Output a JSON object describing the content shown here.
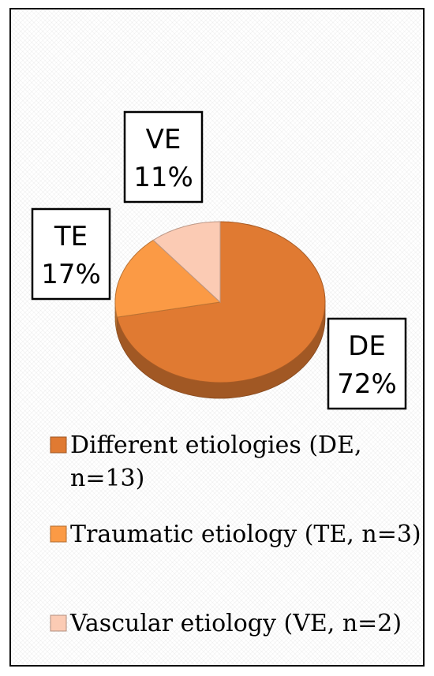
{
  "chart_data": {
    "type": "pie",
    "style": "3d",
    "slices": [
      {
        "label": "DE",
        "percent_label": "72%",
        "value": 72,
        "color": "#E07A32"
      },
      {
        "label": "TE",
        "percent_label": "17%",
        "value": 17,
        "color": "#FB9A45"
      },
      {
        "label": "VE",
        "percent_label": "11%",
        "value": 11,
        "color": "#FBCBB4"
      }
    ],
    "legend": {
      "placement": "bottom",
      "entries": [
        {
          "lines": [
            "Different etiologies (DE,",
            "n=13)"
          ],
          "color": "#E07A32"
        },
        {
          "lines": [
            "Traumatic etiology (TE, n=3)"
          ],
          "color": "#FB9A45"
        },
        {
          "lines": [
            "Vascular etiology (VE, n=2)"
          ],
          "color": "#FBCBB4"
        }
      ]
    },
    "title": ""
  }
}
